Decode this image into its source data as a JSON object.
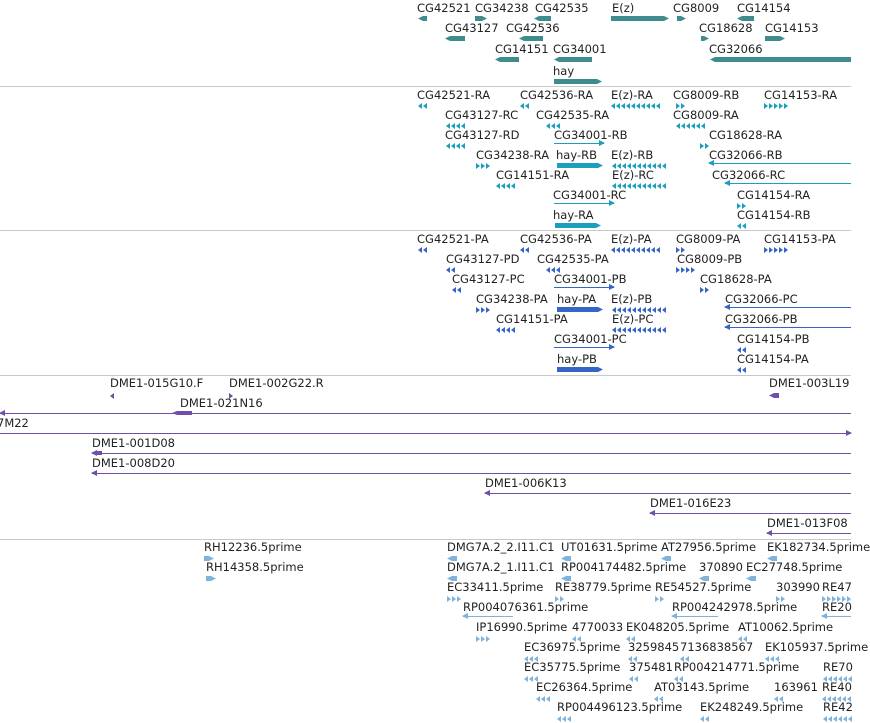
{
  "colors": {
    "gene": "#3f8c8e",
    "transcript": "#1a9fbc",
    "protein": "#3566c7",
    "clone": "#6f4fa8",
    "est": "#7fb3db",
    "divider": "#c9c9c9"
  },
  "tracks": [
    {
      "id": "genes",
      "color_key": "gene",
      "labels": [
        "CG42521",
        "CG34238",
        "CG42535",
        "E(z)",
        "CG8009",
        "CG14154",
        "CG43127",
        "CG42536",
        "CG18628",
        "CG14153",
        "CG14151",
        "CG34001",
        "CG32066",
        "hay"
      ]
    },
    {
      "id": "transcripts",
      "color_key": "transcript",
      "labels": [
        "CG42521-RA",
        "CG42536-RA",
        "E(z)-RA",
        "CG8009-RB",
        "CG14153-RA",
        "CG43127-RC",
        "CG42535-RA",
        "CG8009-RA",
        "CG43127-RD",
        "CG34001-RB",
        "CG18628-RA",
        "CG34238-RA",
        "hay-RB",
        "E(z)-RB",
        "CG32066-RB",
        "CG14151-RA",
        "E(z)-RC",
        "CG32066-RC",
        "CG34001-RC",
        "CG14154-RA",
        "hay-RA",
        "CG14154-RB"
      ]
    },
    {
      "id": "proteins",
      "color_key": "protein",
      "labels": [
        "CG42521-PA",
        "CG42536-PA",
        "E(z)-PA",
        "CG8009-PA",
        "CG14153-PA",
        "CG43127-PD",
        "CG42535-PA",
        "CG8009-PB",
        "CG43127-PC",
        "CG34001-PB",
        "CG18628-PA",
        "CG34238-PA",
        "hay-PA",
        "E(z)-PB",
        "CG32066-PC",
        "CG14151-PA",
        "E(z)-PC",
        "CG32066-PB",
        "CG14154-PB",
        "CG34001-PC",
        "hay-PB",
        "CG14154-PA"
      ]
    },
    {
      "id": "clones",
      "color_key": "clone",
      "labels": [
        "DME1-015G10.F",
        "DME1-002G22.R",
        "DME1-003L19",
        "DME1-021N16",
        "7M22",
        "DME1-001D08",
        "DME1-008D20",
        "DME1-006K13",
        "DME1-016E23",
        "DME1-013F08"
      ]
    },
    {
      "id": "ests",
      "color_key": "est",
      "labels": [
        "RH12236.5prime",
        "DMG7A.2_2.I11.C1",
        "UT01631.5prime",
        "AT27956.5prime",
        "EK182734.5prime",
        "RH14358.5prime",
        "DMG7A.2_1.I11.C1",
        "RP004174482.5prime",
        "370890",
        "EC27748.5prime",
        "EC33411.5prime",
        "RE38779.5prime",
        "RE54527.5prime",
        "303990",
        "RE47",
        "RP004076361.5prime",
        "RP004242978.5prime",
        "RE20",
        "IP16990.5prime",
        "4770033",
        "EK048205.5prime",
        "AT10062.5prime",
        "EC36975.5prime",
        "3259845",
        "7136838567",
        "EK105937.5prime",
        "EC35775.5prime",
        "375481",
        "RP004214771.5prime",
        "RE70",
        "EC26364.5prime",
        "AT03143.5prime",
        "163961",
        "RE40",
        "RP004496123.5prime",
        "EK248249.5prime",
        "RE42"
      ]
    }
  ]
}
